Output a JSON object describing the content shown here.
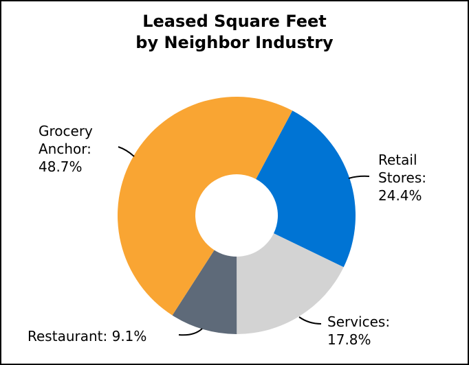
{
  "chart_data": {
    "type": "pie",
    "subtype": "donut",
    "title_lines": [
      "Leased Square Feet",
      "by Neighbor Industry"
    ],
    "slices": [
      {
        "name": "Retail Stores",
        "value": 24.4,
        "label_lines": [
          "Retail",
          "Stores:",
          "24.4%"
        ],
        "color": "#0074D4"
      },
      {
        "name": "Services",
        "value": 17.8,
        "label_lines": [
          "Services:",
          "17.8%"
        ],
        "color": "#D3D3D3"
      },
      {
        "name": "Restaurant",
        "value": 9.1,
        "label_lines": [
          "Restaurant: 9.1%"
        ],
        "color": "#5E6A79"
      },
      {
        "name": "Grocery Anchor",
        "value": 48.7,
        "label_lines": [
          "Grocery",
          "Anchor:",
          "48.7%"
        ],
        "color": "#F9A533"
      }
    ],
    "start_angle_deg": 28
  }
}
